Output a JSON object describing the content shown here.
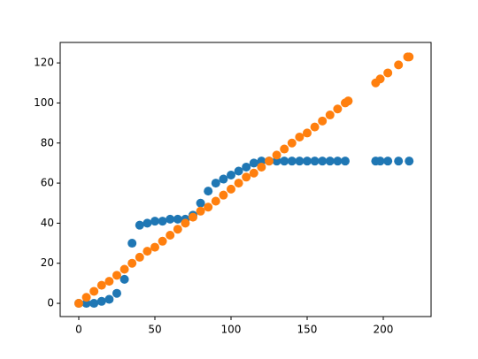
{
  "chart_data": {
    "type": "scatter",
    "xlim": [
      -12.2,
      231.4
    ],
    "ylim": [
      -6.6,
      130.2
    ],
    "xticks": [
      0,
      50,
      100,
      150,
      200
    ],
    "yticks": [
      0,
      20,
      40,
      60,
      80,
      100,
      120
    ],
    "series": [
      {
        "color": "#1f77b4",
        "x": [
          0,
          5,
          10,
          15,
          20,
          25,
          30,
          35,
          40,
          45,
          50,
          55,
          60,
          65,
          70,
          75,
          80,
          85,
          90,
          95,
          100,
          105,
          110,
          115,
          120,
          125,
          130,
          135,
          140,
          145,
          150,
          155,
          160,
          165,
          170,
          175,
          195,
          198,
          203,
          210,
          217
        ],
        "values": [
          0,
          0,
          0,
          1,
          2,
          5,
          12,
          30,
          39,
          40,
          41,
          41,
          42,
          42,
          42,
          44,
          50,
          56,
          60,
          62,
          64,
          66,
          68,
          70,
          71,
          71,
          71,
          71,
          71,
          71,
          71,
          71,
          71,
          71,
          71,
          71,
          71,
          71,
          71,
          71,
          71
        ]
      },
      {
        "color": "#ff7f0e",
        "x": [
          0,
          5,
          10,
          15,
          20,
          25,
          30,
          35,
          40,
          45,
          50,
          55,
          60,
          65,
          70,
          75,
          80,
          85,
          90,
          95,
          100,
          105,
          110,
          115,
          120,
          125,
          130,
          135,
          140,
          145,
          150,
          155,
          160,
          165,
          170,
          175,
          177,
          195,
          198,
          203,
          210,
          216,
          217
        ],
        "values": [
          0,
          3,
          6,
          9,
          11,
          14,
          17,
          20,
          23,
          26,
          28,
          31,
          34,
          37,
          40,
          43,
          46,
          48,
          51,
          54,
          57,
          60,
          63,
          65,
          68,
          71,
          74,
          77,
          80,
          83,
          85,
          88,
          91,
          94,
          97,
          100,
          101,
          110,
          112,
          115,
          119,
          123,
          123
        ]
      }
    ]
  }
}
